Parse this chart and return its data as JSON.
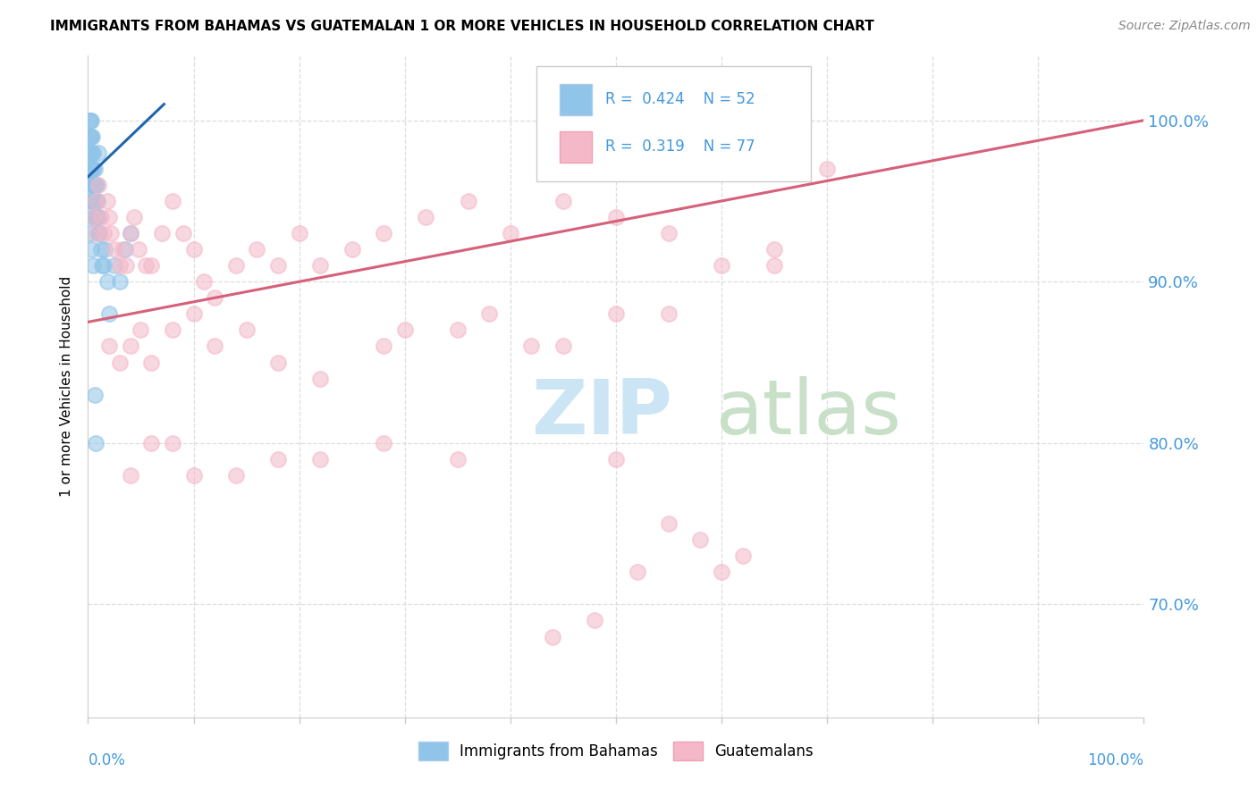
{
  "title": "IMMIGRANTS FROM BAHAMAS VS GUATEMALAN 1 OR MORE VEHICLES IN HOUSEHOLD CORRELATION CHART",
  "source": "Source: ZipAtlas.com",
  "ylabel": "1 or more Vehicles in Household",
  "legend_label1": "Immigrants from Bahamas",
  "legend_label2": "Guatemalans",
  "R1": 0.424,
  "N1": 52,
  "R2": 0.319,
  "N2": 77,
  "color_blue": "#90c4e8",
  "color_pink": "#f4b8c8",
  "trendline_blue": "#2166ac",
  "trendline_pink": "#d6607a",
  "ytick_labels": [
    "100.0%",
    "90.0%",
    "80.0%",
    "70.0%"
  ],
  "ytick_positions": [
    1.0,
    0.9,
    0.8,
    0.7
  ],
  "xlim": [
    0.0,
    1.0
  ],
  "ylim": [
    0.63,
    1.04
  ],
  "blue_trendline_x": [
    0.0,
    0.072
  ],
  "blue_trendline_y": [
    0.965,
    1.01
  ],
  "pink_trendline_x": [
    0.0,
    1.0
  ],
  "pink_trendline_y": [
    0.875,
    1.0
  ],
  "blue_x": [
    0.001,
    0.001,
    0.001,
    0.002,
    0.002,
    0.002,
    0.002,
    0.003,
    0.003,
    0.003,
    0.003,
    0.004,
    0.004,
    0.004,
    0.004,
    0.005,
    0.005,
    0.005,
    0.005,
    0.006,
    0.006,
    0.006,
    0.006,
    0.007,
    0.007,
    0.007,
    0.008,
    0.008,
    0.008,
    0.009,
    0.009,
    0.01,
    0.01,
    0.011,
    0.012,
    0.013,
    0.015,
    0.016,
    0.018,
    0.02,
    0.025,
    0.03,
    0.035,
    0.04,
    0.001,
    0.002,
    0.003,
    0.004,
    0.005,
    0.006,
    0.007,
    0.01
  ],
  "blue_y": [
    1.0,
    0.99,
    0.98,
    1.0,
    0.99,
    0.98,
    0.97,
    1.0,
    0.99,
    0.97,
    0.96,
    0.99,
    0.98,
    0.97,
    0.96,
    0.98,
    0.97,
    0.96,
    0.95,
    0.97,
    0.96,
    0.95,
    0.94,
    0.96,
    0.95,
    0.94,
    0.96,
    0.95,
    0.94,
    0.95,
    0.94,
    0.94,
    0.93,
    0.93,
    0.92,
    0.91,
    0.91,
    0.92,
    0.9,
    0.88,
    0.91,
    0.9,
    0.92,
    0.93,
    0.95,
    0.93,
    0.92,
    0.94,
    0.91,
    0.83,
    0.8,
    0.98
  ],
  "pink_x": [
    0.005,
    0.007,
    0.008,
    0.01,
    0.012,
    0.015,
    0.018,
    0.02,
    0.022,
    0.025,
    0.03,
    0.033,
    0.036,
    0.04,
    0.044,
    0.048,
    0.055,
    0.06,
    0.07,
    0.08,
    0.09,
    0.1,
    0.11,
    0.12,
    0.14,
    0.16,
    0.18,
    0.2,
    0.22,
    0.25,
    0.28,
    0.32,
    0.36,
    0.4,
    0.45,
    0.5,
    0.55,
    0.6,
    0.65,
    0.7,
    0.02,
    0.03,
    0.04,
    0.05,
    0.06,
    0.08,
    0.1,
    0.12,
    0.15,
    0.18,
    0.22,
    0.28,
    0.35,
    0.42,
    0.5,
    0.3,
    0.38,
    0.45,
    0.55,
    0.65,
    0.5,
    0.35,
    0.28,
    0.22,
    0.18,
    0.14,
    0.1,
    0.08,
    0.06,
    0.04,
    0.55,
    0.6,
    0.62,
    0.58,
    0.52,
    0.48,
    0.44
  ],
  "pink_y": [
    0.94,
    0.95,
    0.93,
    0.96,
    0.94,
    0.93,
    0.95,
    0.94,
    0.93,
    0.92,
    0.91,
    0.92,
    0.91,
    0.93,
    0.94,
    0.92,
    0.91,
    0.91,
    0.93,
    0.95,
    0.93,
    0.92,
    0.9,
    0.89,
    0.91,
    0.92,
    0.91,
    0.93,
    0.91,
    0.92,
    0.93,
    0.94,
    0.95,
    0.93,
    0.95,
    0.94,
    0.93,
    0.91,
    0.92,
    0.97,
    0.86,
    0.85,
    0.86,
    0.87,
    0.85,
    0.87,
    0.88,
    0.86,
    0.87,
    0.85,
    0.84,
    0.86,
    0.87,
    0.86,
    0.88,
    0.87,
    0.88,
    0.86,
    0.88,
    0.91,
    0.79,
    0.79,
    0.8,
    0.79,
    0.79,
    0.78,
    0.78,
    0.8,
    0.8,
    0.78,
    0.75,
    0.72,
    0.73,
    0.74,
    0.72,
    0.69,
    0.68
  ]
}
